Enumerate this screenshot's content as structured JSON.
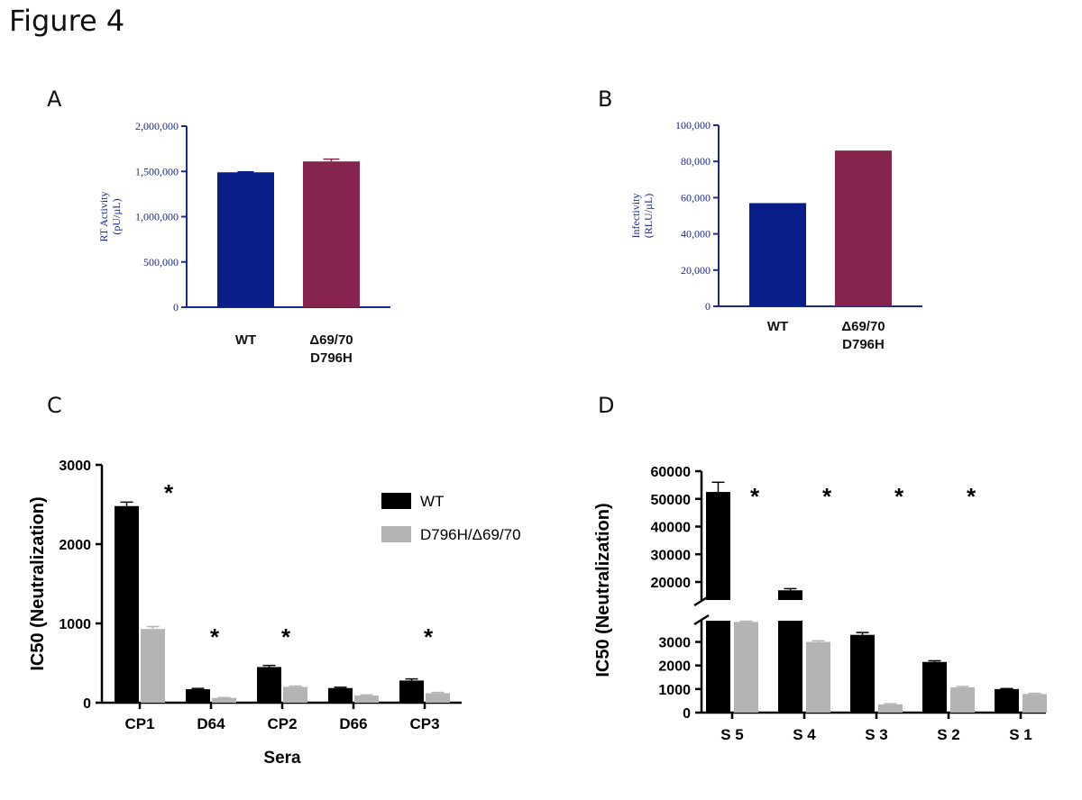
{
  "figure_title": "Figure 4",
  "chart_data": [
    {
      "panel": "A",
      "type": "bar",
      "title": "",
      "ylabel": [
        "RT Activity",
        "(pU/µL)"
      ],
      "xlabel": "",
      "categories": [
        [
          "WT"
        ],
        [
          "Δ69/70",
          "D796H"
        ]
      ],
      "values": [
        1490000,
        1610000
      ],
      "errors": [
        5000,
        25000
      ],
      "colors": [
        "#0a1e8a",
        "#86244e"
      ],
      "ylim": [
        0,
        2000000
      ],
      "yticks": [
        0,
        500000,
        1000000,
        1500000,
        2000000
      ],
      "ytick_labels": [
        "0",
        "500,000",
        "1,000,000",
        "1,500,000",
        "2,000,000"
      ]
    },
    {
      "panel": "B",
      "type": "bar",
      "title": "",
      "ylabel": [
        "Infectivity",
        "(RLU/µL)"
      ],
      "xlabel": "",
      "categories": [
        [
          "WT"
        ],
        [
          "Δ69/70",
          "D796H"
        ]
      ],
      "values": [
        57000,
        86000
      ],
      "errors": [
        0,
        0
      ],
      "colors": [
        "#0a1e8a",
        "#86244e"
      ],
      "ylim": [
        0,
        100000
      ],
      "yticks": [
        0,
        20000,
        40000,
        60000,
        80000,
        100000
      ],
      "ytick_labels": [
        "0",
        "20,000",
        "40,000",
        "60,000",
        "80,000",
        "100,000"
      ]
    },
    {
      "panel": "C",
      "type": "bar",
      "title": "",
      "ylabel": "IC50 (Neutralization)",
      "xlabel": "Sera",
      "categories": [
        "CP1",
        "D64",
        "CP2",
        "D66",
        "CP3"
      ],
      "series": [
        {
          "name": "WT",
          "color": "#000000",
          "values": [
            2480,
            170,
            450,
            185,
            280
          ],
          "errors": [
            50,
            10,
            20,
            10,
            20
          ]
        },
        {
          "name": "D796H/Δ69/70",
          "color": "#b4b4b4",
          "values": [
            930,
            60,
            200,
            90,
            120
          ],
          "errors": [
            30,
            5,
            10,
            8,
            10
          ]
        }
      ],
      "annotations": [
        "*",
        "*",
        "*",
        "",
        "*"
      ],
      "ylim": [
        0,
        3000
      ],
      "yticks": [
        0,
        1000,
        2000,
        3000
      ],
      "ytick_labels": [
        "0",
        "1000",
        "2000",
        "3000"
      ],
      "legend": "right"
    },
    {
      "panel": "D",
      "type": "bar",
      "title": "",
      "ylabel": "IC50 (Neutralization)",
      "xlabel": "",
      "categories": [
        "S 5",
        "S 4",
        "S 3",
        "S 2",
        "S 1"
      ],
      "series": [
        {
          "name": "WT",
          "color": "#000000",
          "values": [
            52500,
            17000,
            3300,
            2150,
            1000
          ],
          "errors": [
            3500,
            600,
            100,
            50,
            20
          ]
        },
        {
          "name": "D796H/Δ69/70",
          "color": "#b4b4b4",
          "values": [
            3850,
            3000,
            350,
            1070,
            790
          ],
          "errors": [
            30,
            50,
            30,
            40,
            30
          ]
        }
      ],
      "annotations": [
        "*",
        "*",
        "*",
        "*",
        ""
      ],
      "axis_break": [
        3900,
        13500
      ],
      "lower_ylim": [
        0,
        3900
      ],
      "upper_ylim": [
        13500,
        60000
      ],
      "lower_yticks": [
        0,
        1000,
        2000,
        3000
      ],
      "upper_yticks": [
        20000,
        30000,
        40000,
        50000,
        60000
      ],
      "lower_ytick_labels": [
        "0",
        "1000",
        "2000",
        "3000"
      ],
      "upper_ytick_labels": [
        "20000",
        "30000",
        "40000",
        "50000",
        "60000"
      ]
    }
  ]
}
